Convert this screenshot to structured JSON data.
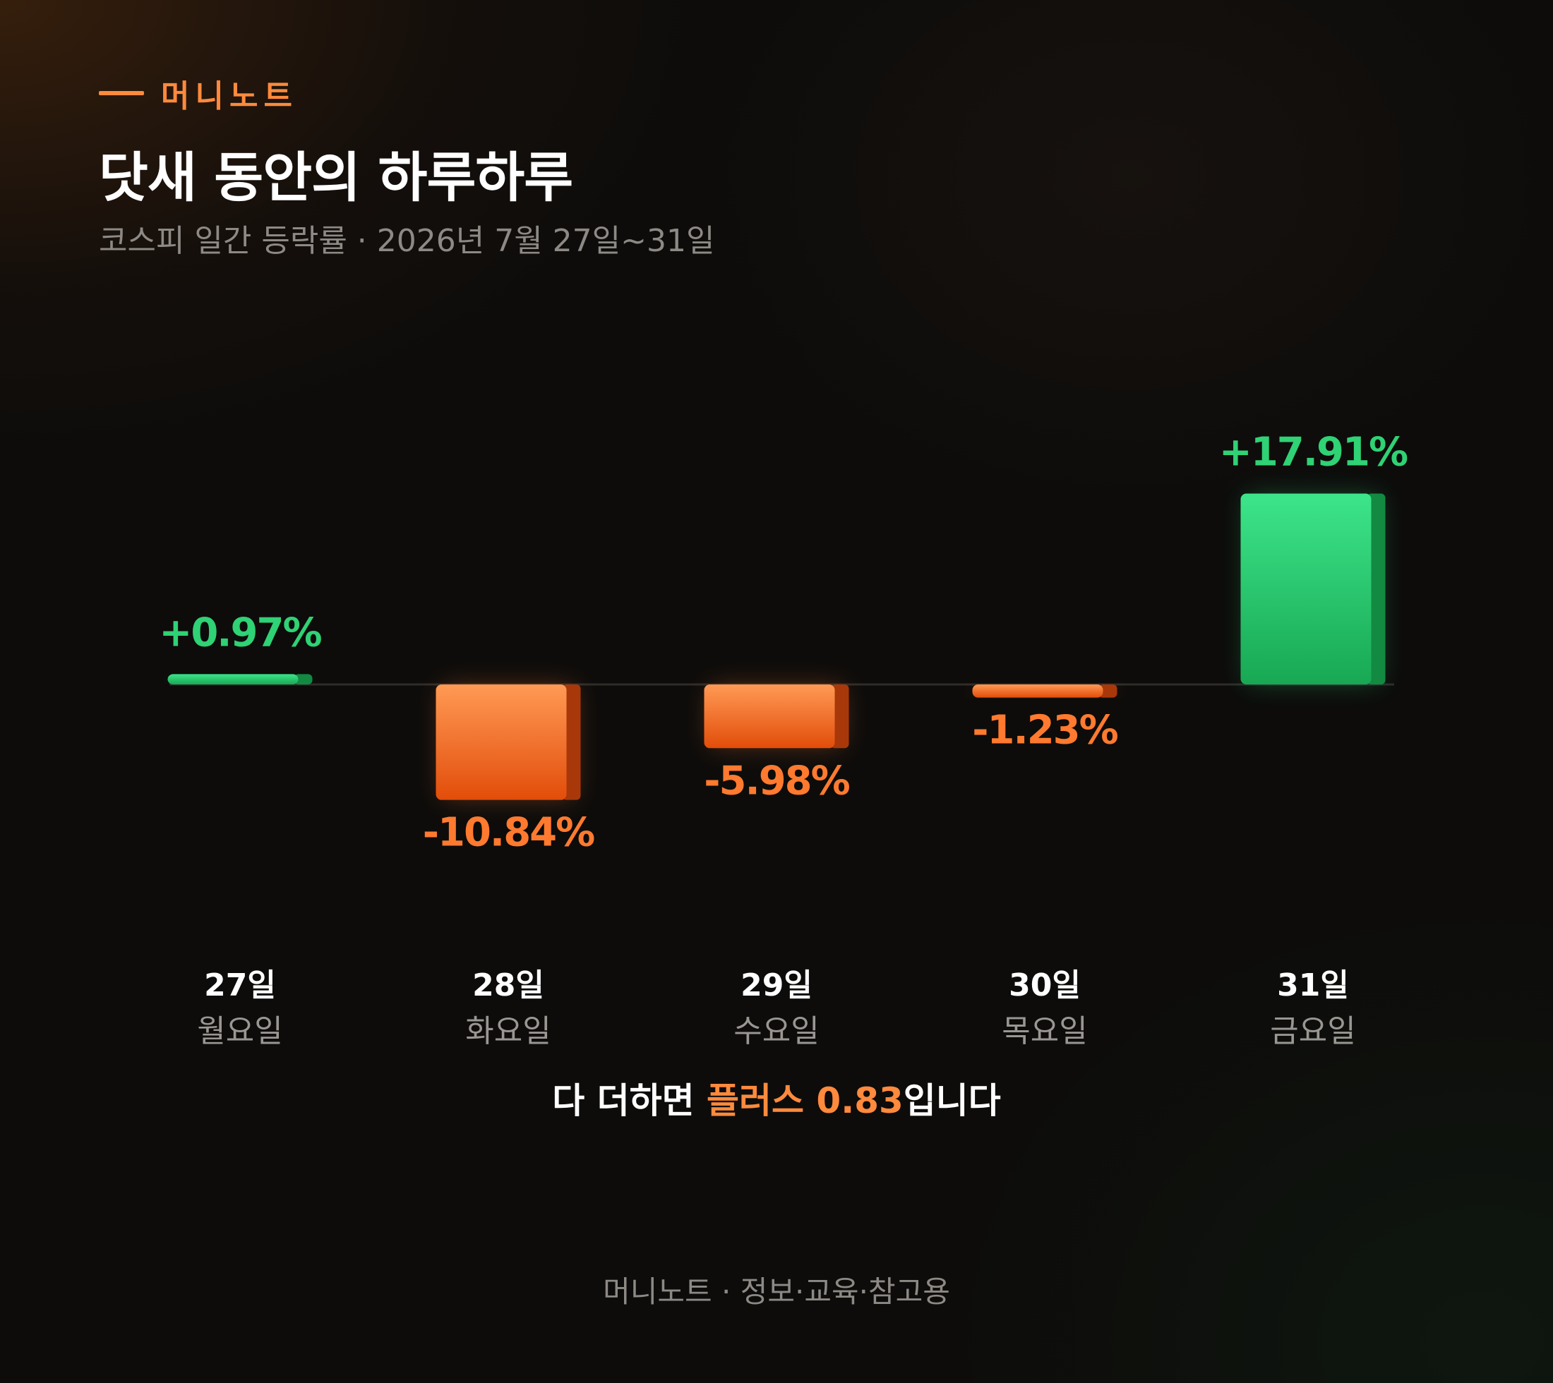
{
  "brand": "머니노트",
  "title": "닷새 동안의 하루하루",
  "subtitle": "코스피 일간 등락률 · 2026년 7월 27일~31일",
  "colors": {
    "positive": "#2fd274",
    "negative": "#ff7a2f",
    "accent": "#ff8a3d",
    "background": "#0d0c0b"
  },
  "chart_data": {
    "type": "bar",
    "categories": [
      "27일",
      "28일",
      "29일",
      "30일",
      "31일"
    ],
    "weekdays": [
      "월요일",
      "화요일",
      "수요일",
      "목요일",
      "금요일"
    ],
    "values": [
      0.97,
      -10.84,
      -5.98,
      -1.23,
      17.91
    ],
    "value_labels": [
      "+0.97%",
      "-10.84%",
      "-5.98%",
      "-1.23%",
      "+17.91%"
    ],
    "unit": "%",
    "grid": false,
    "baseline": 0
  },
  "summary": {
    "prefix": "다 더하면 ",
    "highlight": "플러스 0.83",
    "suffix": "입니다"
  },
  "footer": "머니노트 · 정보·교육·참고용"
}
